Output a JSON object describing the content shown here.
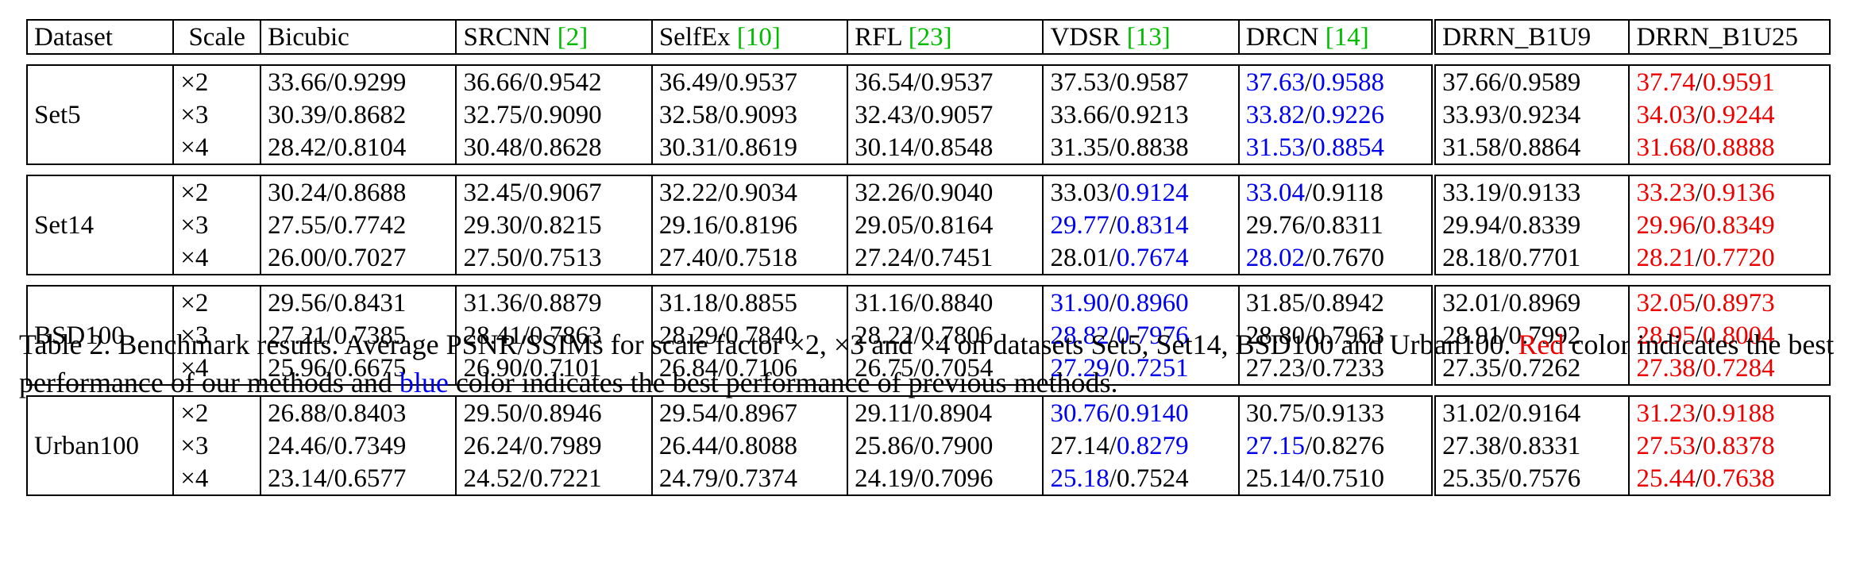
{
  "table": {
    "headers": [
      {
        "text": "Dataset",
        "ref": ""
      },
      {
        "text": "Scale",
        "ref": ""
      },
      {
        "text": "Bicubic",
        "ref": ""
      },
      {
        "text": "SRCNN ",
        "ref": "[2]"
      },
      {
        "text": "SelfEx ",
        "ref": "[10]"
      },
      {
        "text": "RFL ",
        "ref": "[23]"
      },
      {
        "text": "VDSR ",
        "ref": "[13]"
      },
      {
        "text": "DRCN ",
        "ref": "[14]"
      },
      {
        "text": "DRRN_B1U9",
        "ref": ""
      },
      {
        "text": "DRRN_B1U25",
        "ref": ""
      }
    ],
    "groups": [
      {
        "dataset": "Set5",
        "rows": [
          {
            "scale": "×2",
            "cells": [
              {
                "psnr": "33.66",
                "ssim": "0.9299"
              },
              {
                "psnr": "36.66",
                "ssim": "0.9542"
              },
              {
                "psnr": "36.49",
                "ssim": "0.9537"
              },
              {
                "psnr": "36.54",
                "ssim": "0.9537"
              },
              {
                "psnr": "37.53",
                "ssim": "0.9587"
              },
              {
                "psnr": "37.63",
                "ssim": "0.9588",
                "pc": "blue",
                "sc": "blue"
              },
              {
                "psnr": "37.66",
                "ssim": "0.9589"
              },
              {
                "psnr": "37.74",
                "ssim": "0.9591",
                "pc": "red",
                "sc": "red"
              }
            ]
          },
          {
            "scale": "×3",
            "cells": [
              {
                "psnr": "30.39",
                "ssim": "0.8682"
              },
              {
                "psnr": "32.75",
                "ssim": "0.9090"
              },
              {
                "psnr": "32.58",
                "ssim": "0.9093"
              },
              {
                "psnr": "32.43",
                "ssim": "0.9057"
              },
              {
                "psnr": "33.66",
                "ssim": "0.9213"
              },
              {
                "psnr": "33.82",
                "ssim": "0.9226",
                "pc": "blue",
                "sc": "blue"
              },
              {
                "psnr": "33.93",
                "ssim": "0.9234"
              },
              {
                "psnr": "34.03",
                "ssim": "0.9244",
                "pc": "red",
                "sc": "red"
              }
            ]
          },
          {
            "scale": "×4",
            "cells": [
              {
                "psnr": "28.42",
                "ssim": "0.8104"
              },
              {
                "psnr": "30.48",
                "ssim": "0.8628"
              },
              {
                "psnr": "30.31",
                "ssim": "0.8619"
              },
              {
                "psnr": "30.14",
                "ssim": "0.8548"
              },
              {
                "psnr": "31.35",
                "ssim": "0.8838"
              },
              {
                "psnr": "31.53",
                "ssim": "0.8854",
                "pc": "blue",
                "sc": "blue"
              },
              {
                "psnr": "31.58",
                "ssim": "0.8864"
              },
              {
                "psnr": "31.68",
                "ssim": "0.8888",
                "pc": "red",
                "sc": "red"
              }
            ]
          }
        ]
      },
      {
        "dataset": "Set14",
        "rows": [
          {
            "scale": "×2",
            "cells": [
              {
                "psnr": "30.24",
                "ssim": "0.8688"
              },
              {
                "psnr": "32.45",
                "ssim": "0.9067"
              },
              {
                "psnr": "32.22",
                "ssim": "0.9034"
              },
              {
                "psnr": "32.26",
                "ssim": "0.9040"
              },
              {
                "psnr": "33.03",
                "ssim": "0.9124",
                "sc": "blue"
              },
              {
                "psnr": "33.04",
                "ssim": "0.9118",
                "pc": "blue"
              },
              {
                "psnr": "33.19",
                "ssim": "0.9133"
              },
              {
                "psnr": "33.23",
                "ssim": "0.9136",
                "pc": "red",
                "sc": "red"
              }
            ]
          },
          {
            "scale": "×3",
            "cells": [
              {
                "psnr": "27.55",
                "ssim": "0.7742"
              },
              {
                "psnr": "29.30",
                "ssim": "0.8215"
              },
              {
                "psnr": "29.16",
                "ssim": "0.8196"
              },
              {
                "psnr": "29.05",
                "ssim": "0.8164"
              },
              {
                "psnr": "29.77",
                "ssim": "0.8314",
                "pc": "blue",
                "sc": "blue"
              },
              {
                "psnr": "29.76",
                "ssim": "0.8311"
              },
              {
                "psnr": "29.94",
                "ssim": "0.8339"
              },
              {
                "psnr": "29.96",
                "ssim": "0.8349",
                "pc": "red",
                "sc": "red"
              }
            ]
          },
          {
            "scale": "×4",
            "cells": [
              {
                "psnr": "26.00",
                "ssim": "0.7027"
              },
              {
                "psnr": "27.50",
                "ssim": "0.7513"
              },
              {
                "psnr": "27.40",
                "ssim": "0.7518"
              },
              {
                "psnr": "27.24",
                "ssim": "0.7451"
              },
              {
                "psnr": "28.01",
                "ssim": "0.7674",
                "sc": "blue"
              },
              {
                "psnr": "28.02",
                "ssim": "0.7670",
                "pc": "blue"
              },
              {
                "psnr": "28.18",
                "ssim": "0.7701"
              },
              {
                "psnr": "28.21",
                "ssim": "0.7720",
                "pc": "red",
                "sc": "red"
              }
            ]
          }
        ]
      },
      {
        "dataset": "BSD100",
        "rows": [
          {
            "scale": "×2",
            "cells": [
              {
                "psnr": "29.56",
                "ssim": "0.8431"
              },
              {
                "psnr": "31.36",
                "ssim": "0.8879"
              },
              {
                "psnr": "31.18",
                "ssim": "0.8855"
              },
              {
                "psnr": "31.16",
                "ssim": "0.8840"
              },
              {
                "psnr": "31.90",
                "ssim": "0.8960",
                "pc": "blue",
                "sc": "blue"
              },
              {
                "psnr": "31.85",
                "ssim": "0.8942"
              },
              {
                "psnr": "32.01",
                "ssim": "0.8969"
              },
              {
                "psnr": "32.05",
                "ssim": "0.8973",
                "pc": "red",
                "sc": "red"
              }
            ]
          },
          {
            "scale": "×3",
            "cells": [
              {
                "psnr": "27.21",
                "ssim": "0.7385"
              },
              {
                "psnr": "28.41",
                "ssim": "0.7863"
              },
              {
                "psnr": "28.29",
                "ssim": "0.7840"
              },
              {
                "psnr": "28.22",
                "ssim": "0.7806"
              },
              {
                "psnr": "28.82",
                "ssim": "0.7976",
                "pc": "blue",
                "sc": "blue"
              },
              {
                "psnr": "28.80",
                "ssim": "0.7963"
              },
              {
                "psnr": "28.91",
                "ssim": "0.7992"
              },
              {
                "psnr": "28.95",
                "ssim": "0.8004",
                "pc": "red",
                "sc": "red"
              }
            ]
          },
          {
            "scale": "×4",
            "cells": [
              {
                "psnr": "25.96",
                "ssim": "0.6675"
              },
              {
                "psnr": "26.90",
                "ssim": "0.7101"
              },
              {
                "psnr": "26.84",
                "ssim": "0.7106"
              },
              {
                "psnr": "26.75",
                "ssim": "0.7054"
              },
              {
                "psnr": "27.29",
                "ssim": "0.7251",
                "pc": "blue",
                "sc": "blue"
              },
              {
                "psnr": "27.23",
                "ssim": "0.7233"
              },
              {
                "psnr": "27.35",
                "ssim": "0.7262"
              },
              {
                "psnr": "27.38",
                "ssim": "0.7284",
                "pc": "red",
                "sc": "red"
              }
            ]
          }
        ]
      },
      {
        "dataset": "Urban100",
        "rows": [
          {
            "scale": "×2",
            "cells": [
              {
                "psnr": "26.88",
                "ssim": "0.8403"
              },
              {
                "psnr": "29.50",
                "ssim": "0.8946"
              },
              {
                "psnr": "29.54",
                "ssim": "0.8967"
              },
              {
                "psnr": "29.11",
                "ssim": "0.8904"
              },
              {
                "psnr": "30.76",
                "ssim": "0.9140",
                "pc": "blue",
                "sc": "blue"
              },
              {
                "psnr": "30.75",
                "ssim": "0.9133"
              },
              {
                "psnr": "31.02",
                "ssim": "0.9164"
              },
              {
                "psnr": "31.23",
                "ssim": "0.9188",
                "pc": "red",
                "sc": "red"
              }
            ]
          },
          {
            "scale": "×3",
            "cells": [
              {
                "psnr": "24.46",
                "ssim": "0.7349"
              },
              {
                "psnr": "26.24",
                "ssim": "0.7989"
              },
              {
                "psnr": "26.44",
                "ssim": "0.8088"
              },
              {
                "psnr": "25.86",
                "ssim": "0.7900"
              },
              {
                "psnr": "27.14",
                "ssim": "0.8279",
                "sc": "blue"
              },
              {
                "psnr": "27.15",
                "ssim": "0.8276",
                "pc": "blue"
              },
              {
                "psnr": "27.38",
                "ssim": "0.8331"
              },
              {
                "psnr": "27.53",
                "ssim": "0.8378",
                "pc": "red",
                "sc": "red"
              }
            ]
          },
          {
            "scale": "×4",
            "cells": [
              {
                "psnr": "23.14",
                "ssim": "0.6577"
              },
              {
                "psnr": "24.52",
                "ssim": "0.7221"
              },
              {
                "psnr": "24.79",
                "ssim": "0.7374"
              },
              {
                "psnr": "24.19",
                "ssim": "0.7096"
              },
              {
                "psnr": "25.18",
                "ssim": "0.7524",
                "pc": "blue"
              },
              {
                "psnr": "25.14",
                "ssim": "0.7510"
              },
              {
                "psnr": "25.35",
                "ssim": "0.7576"
              },
              {
                "psnr": "25.44",
                "ssim": "0.7638",
                "pc": "red",
                "sc": "red"
              }
            ]
          }
        ]
      }
    ]
  },
  "caption": {
    "part1": "Table 2. Benchmark results. Average PSNR/SSIMs for scale factor ×2, ×3 and ×4 on datasets Set5, Set14, BSD100 and Urban100. ",
    "red_word": "Red",
    "part2": " color indicates the best performance of our methods and ",
    "blue_word": "blue",
    "part3": " color indicates the best performance of previous methods."
  },
  "colors": {
    "red": "#ee0000",
    "blue": "#0000ee",
    "ref_green": "#00bb00"
  }
}
